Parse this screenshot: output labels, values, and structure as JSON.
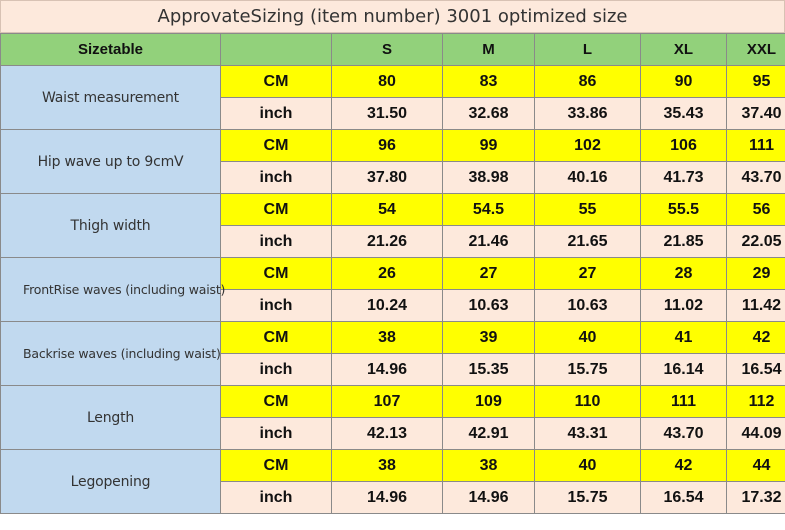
{
  "title": "ApprovateSizing (item number) 3001 optimized size",
  "header": {
    "corner": "Sizetable",
    "sizes": [
      "S",
      "M",
      "L",
      "XL",
      "XXL"
    ]
  },
  "rows": [
    {
      "label": "Waist measurement",
      "cm_unit": "CM",
      "inch_unit": "inch",
      "cm": [
        "80",
        "83",
        "86",
        "90",
        "95"
      ],
      "inch": [
        "31.50",
        "32.68",
        "33.86",
        "35.43",
        "37.40"
      ]
    },
    {
      "label": "Hip wave up to 9cmV",
      "cm_unit": "CM",
      "inch_unit": "inch",
      "cm": [
        "96",
        "99",
        "102",
        "106",
        "111"
      ],
      "inch": [
        "37.80",
        "38.98",
        "40.16",
        "41.73",
        "43.70"
      ]
    },
    {
      "label": "Thigh width",
      "cm_unit": "CM",
      "inch_unit": "inch",
      "cm": [
        "54",
        "54.5",
        "55",
        "55.5",
        "56"
      ],
      "inch": [
        "21.26",
        "21.46",
        "21.65",
        "21.85",
        "22.05"
      ]
    },
    {
      "label": "FrontRise waves (including waist)",
      "cm_unit": "CM",
      "inch_unit": "inch",
      "cm": [
        "26",
        "27",
        "27",
        "28",
        "29"
      ],
      "inch": [
        "10.24",
        "10.63",
        "10.63",
        "11.02",
        "11.42"
      ]
    },
    {
      "label": "Backrise waves (including waist)",
      "cm_unit": "CM",
      "inch_unit": "inch",
      "cm": [
        "38",
        "39",
        "40",
        "41",
        "42"
      ],
      "inch": [
        "14.96",
        "15.35",
        "15.75",
        "16.14",
        "16.54"
      ]
    },
    {
      "label": "Length",
      "cm_unit": "CM",
      "inch_unit": "inch",
      "cm": [
        "107",
        "109",
        "110",
        "111",
        "112"
      ],
      "inch": [
        "42.13",
        "42.91",
        "43.31",
        "43.70",
        "44.09"
      ]
    },
    {
      "label": "Legopening",
      "cm_unit": "CM",
      "inch_unit": "inch",
      "cm": [
        "38",
        "38",
        "40",
        "42",
        "44"
      ],
      "inch": [
        "14.96",
        "14.96",
        "15.75",
        "16.54",
        "17.32"
      ]
    }
  ]
}
